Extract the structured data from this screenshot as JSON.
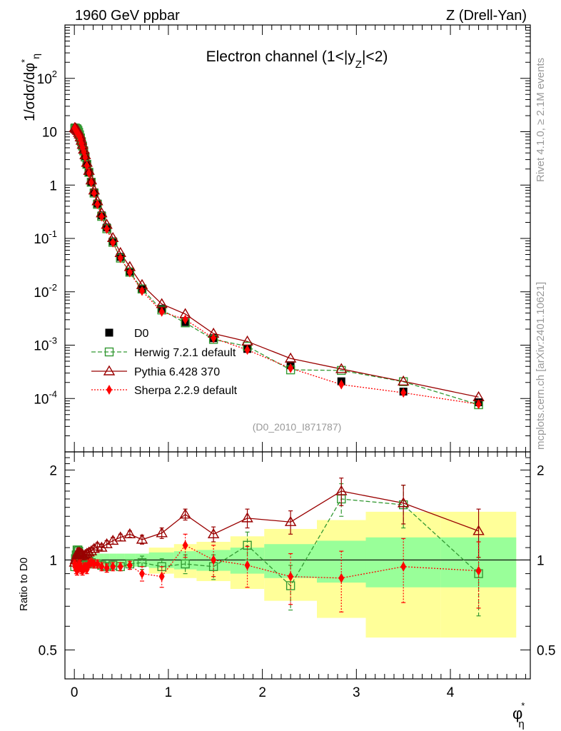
{
  "header": {
    "left": "1960 GeV ppbar",
    "right": "Z (Drell-Yan)"
  },
  "side_labels": {
    "rivet": "Rivet 4.1.0, ≥ 2.1M events",
    "mcplots": "mcplots.cern.ch [arXiv:2401.10621]"
  },
  "chart_data": {
    "type": "scatter",
    "title": "Electron channel (1<|y",
    "title_sub": "Z",
    "title_end": "|<2)",
    "analysis": "(D0_2010_I871787)",
    "xlabel": "φ",
    "xlabel_sup": "*",
    "xlabel_sub": "η",
    "ylabel": "1/σdσ/dφ",
    "ylabel_sup": "*",
    "ylabel_sub": "η",
    "ratio_ylabel": "Ratio to D0",
    "x_range": [
      -0.1,
      4.85
    ],
    "y_range_log10": [
      -5,
      3
    ],
    "ratio_range": [
      0.4,
      2.3
    ],
    "x_ticks": [
      "0",
      "1",
      "2",
      "3",
      "4"
    ],
    "y_ticks": [
      {
        "base": "10",
        "exp": "-4"
      },
      {
        "base": "10",
        "exp": "-3"
      },
      {
        "base": "10",
        "exp": "-2"
      },
      {
        "base": "10",
        "exp": "-1"
      },
      {
        "base": "1",
        "exp": ""
      },
      {
        "base": "10",
        "exp": ""
      },
      {
        "base": "10",
        "exp": "2"
      }
    ],
    "ratio_ticks": [
      "0.5",
      "1",
      "2"
    ],
    "x": [
      0.004,
      0.012,
      0.02,
      0.029,
      0.038,
      0.046,
      0.055,
      0.065,
      0.075,
      0.087,
      0.1,
      0.115,
      0.133,
      0.155,
      0.18,
      0.21,
      0.245,
      0.29,
      0.345,
      0.41,
      0.49,
      0.59,
      0.72,
      0.93,
      1.18,
      1.48,
      1.84,
      2.3,
      2.84,
      3.5,
      4.3
    ],
    "ratio_band_edges": [
      0.0,
      0.008,
      0.016,
      0.024,
      0.034,
      0.042,
      0.05,
      0.06,
      0.07,
      0.08,
      0.093,
      0.108,
      0.123,
      0.143,
      0.167,
      0.193,
      0.227,
      0.263,
      0.317,
      0.373,
      0.447,
      0.533,
      0.647,
      0.793,
      1.06,
      1.3,
      1.66,
      2.02,
      2.58,
      3.1,
      3.9,
      4.7
    ],
    "band_inner": [
      0.05,
      0.05,
      0.05,
      0.05,
      0.05,
      0.05,
      0.05,
      0.05,
      0.05,
      0.05,
      0.05,
      0.05,
      0.05,
      0.05,
      0.05,
      0.05,
      0.05,
      0.05,
      0.05,
      0.05,
      0.05,
      0.05,
      0.05,
      0.06,
      0.07,
      0.08,
      0.1,
      0.13,
      0.16,
      0.19,
      0.19
    ],
    "band_outer": [
      0.05,
      0.05,
      0.05,
      0.05,
      0.05,
      0.05,
      0.05,
      0.05,
      0.05,
      0.05,
      0.05,
      0.05,
      0.05,
      0.05,
      0.05,
      0.05,
      0.05,
      0.05,
      0.05,
      0.05,
      0.05,
      0.05,
      0.05,
      0.1,
      0.13,
      0.15,
      0.2,
      0.27,
      0.36,
      0.45,
      0.45
    ],
    "series": [
      {
        "name": "D0",
        "style": "data",
        "color": "#000000",
        "values": [
          12.0,
          11.6,
          11.0,
          10.4,
          9.8,
          9.1,
          8.4,
          7.5,
          6.5,
          5.5,
          4.5,
          3.5,
          2.5,
          1.75,
          1.15,
          0.73,
          0.45,
          0.27,
          0.16,
          0.088,
          0.045,
          0.024,
          0.0115,
          0.0048,
          0.0027,
          0.00135,
          0.00085,
          0.00042,
          0.00021,
          0.000135,
          8.5e-05
        ]
      },
      {
        "name": "Herwig 7.2.1 default",
        "style": "dashed",
        "color": "#339933",
        "ratios": [
          0.95,
          1.01,
          1.04,
          1.08,
          1.08,
          1.07,
          1.04,
          1.02,
          1.0,
          0.98,
          0.97,
          0.96,
          0.98,
          0.99,
          0.98,
          0.97,
          0.97,
          0.96,
          0.95,
          0.96,
          0.95,
          0.97,
          0.98,
          0.95,
          0.97,
          0.95,
          1.12,
          0.82,
          1.6,
          1.53,
          0.9
        ],
        "ratio_err": [
          0.03,
          0.03,
          0.03,
          0.03,
          0.03,
          0.03,
          0.03,
          0.03,
          0.03,
          0.03,
          0.03,
          0.03,
          0.03,
          0.03,
          0.03,
          0.03,
          0.03,
          0.03,
          0.03,
          0.03,
          0.03,
          0.03,
          0.05,
          0.06,
          0.07,
          0.09,
          0.12,
          0.14,
          0.2,
          0.25,
          0.25
        ]
      },
      {
        "name": "Pythia 6.428 370",
        "style": "solid",
        "color": "#990000",
        "ratios": [
          0.98,
          1.0,
          1.02,
          1.04,
          1.06,
          1.05,
          1.06,
          1.05,
          1.05,
          1.04,
          1.03,
          1.04,
          1.05,
          1.06,
          1.07,
          1.09,
          1.11,
          1.1,
          1.13,
          1.16,
          1.19,
          1.22,
          1.17,
          1.23,
          1.42,
          1.22,
          1.38,
          1.34,
          1.7,
          1.55,
          1.25
        ],
        "ratio_err": [
          0.03,
          0.03,
          0.03,
          0.03,
          0.03,
          0.03,
          0.03,
          0.03,
          0.03,
          0.03,
          0.03,
          0.03,
          0.03,
          0.03,
          0.03,
          0.03,
          0.03,
          0.03,
          0.03,
          0.03,
          0.03,
          0.03,
          0.04,
          0.05,
          0.06,
          0.07,
          0.1,
          0.12,
          0.18,
          0.23,
          0.23
        ]
      },
      {
        "name": "Sherpa 2.2.9 default",
        "style": "dotted",
        "color": "#ff0000",
        "ratios": [
          0.97,
          0.95,
          0.93,
          0.92,
          0.94,
          0.96,
          0.97,
          0.95,
          0.93,
          0.92,
          0.94,
          0.95,
          0.93,
          0.97,
          0.98,
          0.97,
          0.97,
          0.95,
          0.94,
          0.95,
          0.95,
          0.96,
          0.9,
          0.88,
          1.12,
          1.0,
          0.96,
          0.88,
          0.87,
          0.95,
          0.92
        ],
        "ratio_err": [
          0.03,
          0.03,
          0.03,
          0.03,
          0.03,
          0.03,
          0.03,
          0.03,
          0.03,
          0.03,
          0.03,
          0.03,
          0.03,
          0.03,
          0.03,
          0.03,
          0.03,
          0.03,
          0.03,
          0.03,
          0.03,
          0.03,
          0.05,
          0.07,
          0.1,
          0.12,
          0.15,
          0.17,
          0.2,
          0.23,
          0.23
        ]
      }
    ]
  }
}
